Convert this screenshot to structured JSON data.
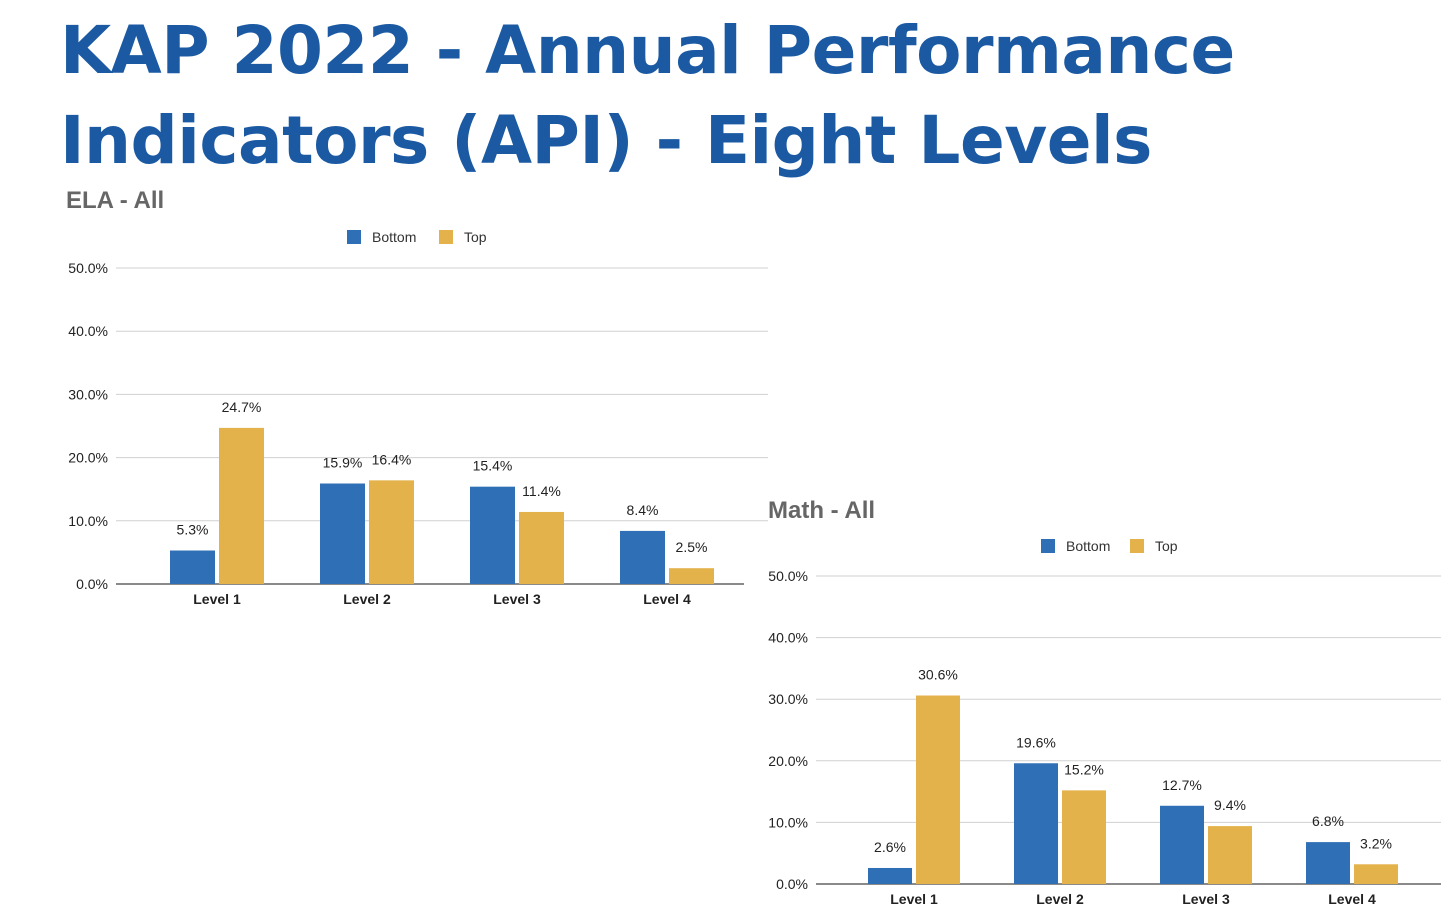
{
  "title_lines": [
    "KAP 2022 - Annual Performance",
    "Indicators (API) - Eight Levels"
  ],
  "colors": {
    "title": "#1b5aa3",
    "bottom": "#2e6fb5",
    "top": "#e3b24a",
    "grid": "#d0d0d0",
    "axis": "#444444"
  },
  "chart_data": [
    {
      "type": "bar",
      "title": "ELA - All",
      "categories": [
        "Level 1",
        "Level 2",
        "Level 3",
        "Level 4"
      ],
      "series": [
        {
          "name": "Bottom",
          "values": [
            5.3,
            15.9,
            15.4,
            8.4
          ],
          "labels": [
            "5.3%",
            "15.9%",
            "15.4%",
            "8.4%"
          ]
        },
        {
          "name": "Top",
          "values": [
            24.7,
            16.4,
            11.4,
            2.5
          ],
          "labels": [
            "24.7%",
            "16.4%",
            "11.4%",
            "2.5%"
          ]
        }
      ],
      "ylim": [
        0,
        50
      ],
      "yticks": [
        "0.0%",
        "10.0%",
        "20.0%",
        "30.0%",
        "40.0%",
        "50.0%"
      ],
      "legend": "top",
      "grid": true
    },
    {
      "type": "bar",
      "title": "Math - All",
      "categories": [
        "Level 1",
        "Level 2",
        "Level 3",
        "Level 4"
      ],
      "series": [
        {
          "name": "Bottom",
          "values": [
            2.6,
            19.6,
            12.7,
            6.8
          ],
          "labels": [
            "2.6%",
            "19.6%",
            "12.7%",
            "6.8%"
          ]
        },
        {
          "name": "Top",
          "values": [
            30.6,
            15.2,
            9.4,
            3.2
          ],
          "labels": [
            "30.6%",
            "15.2%",
            "9.4%",
            "3.2%"
          ]
        }
      ],
      "ylim": [
        0,
        50
      ],
      "yticks": [
        "0.0%",
        "10.0%",
        "20.0%",
        "30.0%",
        "40.0%",
        "50.0%"
      ],
      "legend": "top",
      "grid": true
    }
  ]
}
